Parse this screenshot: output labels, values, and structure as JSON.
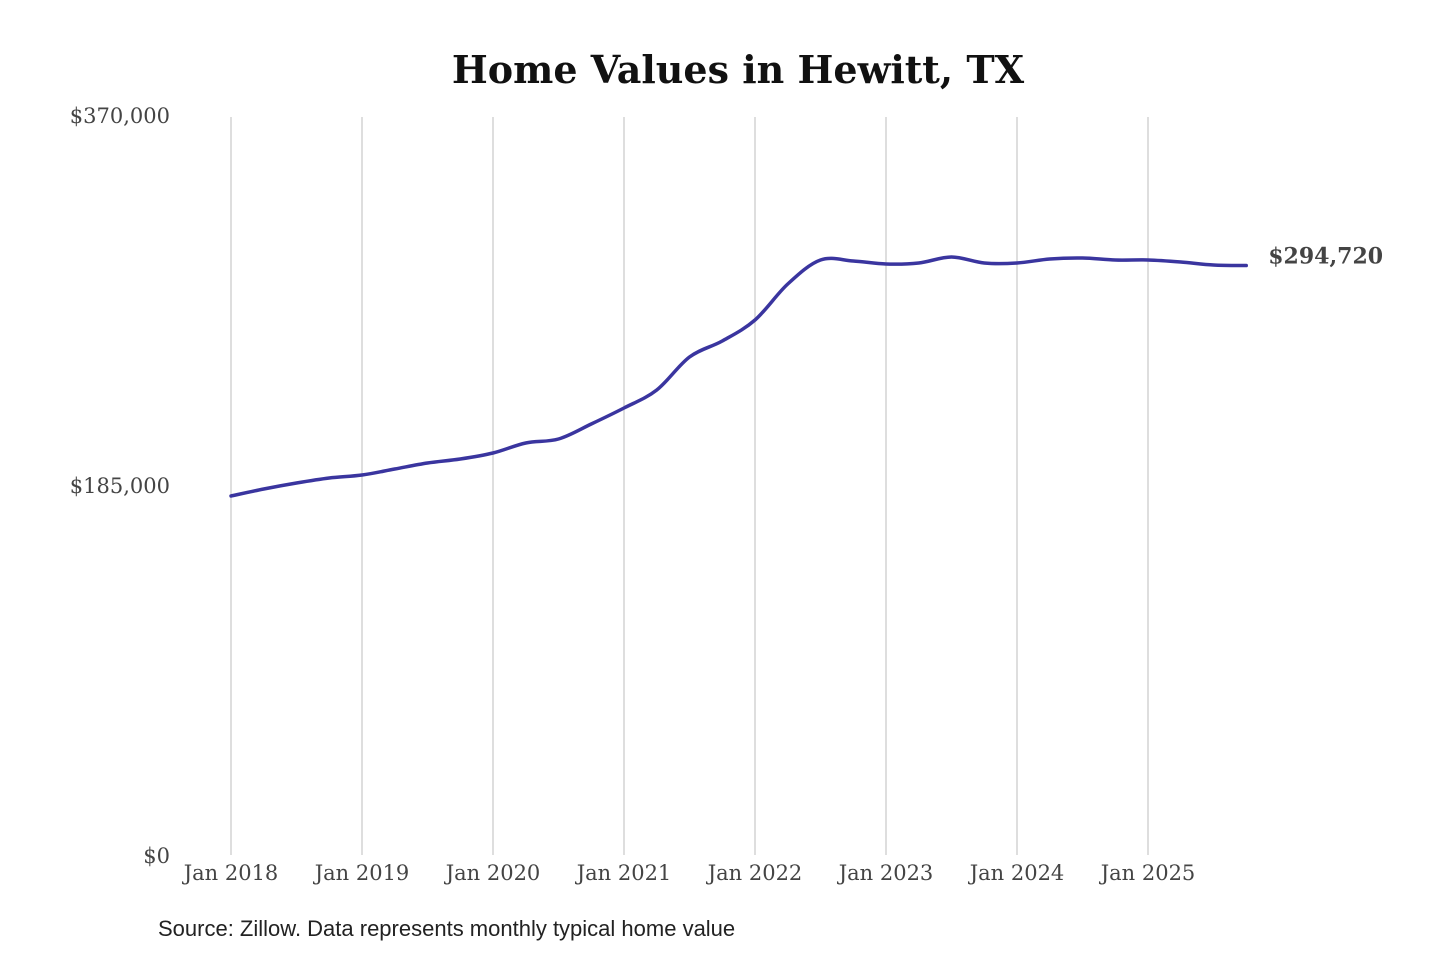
{
  "chart_data": {
    "type": "line",
    "title": "Home Values in Hewitt, TX",
    "xlabel": "",
    "ylabel": "",
    "ylim": [
      0,
      370000
    ],
    "y_ticks": [
      "$0",
      "$185,000",
      "$370,000"
    ],
    "y_tick_values": [
      0,
      185000,
      370000
    ],
    "x_ticks": [
      "Jan 2018",
      "Jan 2019",
      "Jan 2020",
      "Jan 2021",
      "Jan 2022",
      "Jan 2023",
      "Jan 2024",
      "Jan 2025"
    ],
    "grid": "vertical",
    "line_color": "#3a359f",
    "end_label": "$294,720",
    "x": [
      "2018-01",
      "2018-04",
      "2018-07",
      "2018-10",
      "2019-01",
      "2019-04",
      "2019-07",
      "2019-10",
      "2020-01",
      "2020-04",
      "2020-07",
      "2020-10",
      "2021-01",
      "2021-04",
      "2021-07",
      "2021-10",
      "2022-01",
      "2022-04",
      "2022-07",
      "2022-10",
      "2023-01",
      "2023-04",
      "2023-07",
      "2023-10",
      "2024-01",
      "2024-04",
      "2024-07",
      "2024-10",
      "2025-01",
      "2025-04",
      "2025-07",
      "2025-10"
    ],
    "values": [
      179500,
      183000,
      186000,
      188500,
      190000,
      193000,
      196000,
      198000,
      201000,
      206000,
      208000,
      215500,
      223500,
      232500,
      249000,
      257000,
      267500,
      285500,
      297500,
      297000,
      295500,
      296000,
      299000,
      296000,
      296000,
      298000,
      298500,
      297500,
      297500,
      296500,
      295000,
      294720
    ]
  },
  "source": "Source: Zillow. Data represents monthly typical home value"
}
